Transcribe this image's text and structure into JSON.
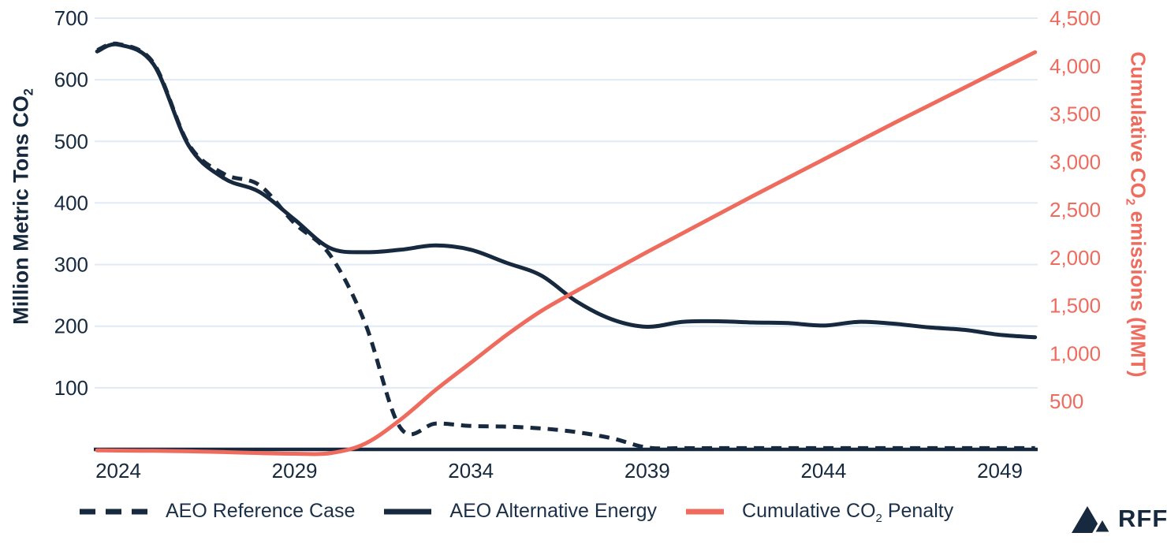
{
  "colors": {
    "navy": "#16293e",
    "coral": "#ee6b5e",
    "gridline": "#dfeaf6",
    "background": "#ffffff"
  },
  "chart_data": {
    "type": "line",
    "x": [
      2023.4,
      2024,
      2025,
      2026,
      2027,
      2028,
      2029,
      2030,
      2031,
      2032,
      2033,
      2034,
      2035,
      2036,
      2037,
      2038,
      2039,
      2040,
      2041,
      2042,
      2043,
      2044,
      2045,
      2046,
      2047,
      2048,
      2049,
      2050
    ],
    "series": [
      {
        "name": "AEO Reference Case",
        "axis": "left",
        "style": "dashed",
        "color": "#16293e",
        "values": [
          648,
          658,
          627,
          495,
          447,
          429,
          367,
          316,
          205,
          35,
          42,
          38,
          37,
          34,
          28,
          18,
          3,
          2,
          2,
          2,
          2,
          2,
          2,
          2,
          2,
          2,
          2,
          2
        ]
      },
      {
        "name": "AEO Alternative Energy",
        "axis": "left",
        "style": "solid",
        "color": "#16293e",
        "values": [
          646,
          657,
          625,
          493,
          440,
          418,
          373,
          327,
          320,
          324,
          331,
          324,
          303,
          282,
          240,
          211,
          199,
          207,
          208,
          206,
          205,
          201,
          207,
          204,
          198,
          194,
          186,
          182
        ]
      },
      {
        "name": "Cumulative CO2 Penalty",
        "axis": "right",
        "style": "solid",
        "color": "#ee6b5e",
        "values": [
          -10,
          -12,
          -15,
          -20,
          -28,
          -38,
          -45,
          -40,
          60,
          310,
          620,
          905,
          1190,
          1445,
          1655,
          1860,
          2060,
          2255,
          2450,
          2645,
          2835,
          3025,
          3215,
          3405,
          3590,
          3775,
          3960,
          4145
        ]
      }
    ],
    "x_axis": {
      "ticks": [
        {
          "value": 2024,
          "label": "2024"
        },
        {
          "value": 2029,
          "label": "2029"
        },
        {
          "value": 2034,
          "label": "2034"
        },
        {
          "value": 2039,
          "label": "2039"
        },
        {
          "value": 2044,
          "label": "2044"
        },
        {
          "value": 2049,
          "label": "2049"
        }
      ]
    },
    "left_axis": {
      "range": [
        0,
        700
      ],
      "title_main": "Million Metric Tons CO",
      "title_sub": "2",
      "ticks": [
        {
          "value": 700,
          "label": "700"
        },
        {
          "value": 600,
          "label": "600"
        },
        {
          "value": 500,
          "label": "500"
        },
        {
          "value": 400,
          "label": "400"
        },
        {
          "value": 300,
          "label": "300"
        },
        {
          "value": 200,
          "label": "200"
        },
        {
          "value": 100,
          "label": "100"
        }
      ]
    },
    "right_axis": {
      "range": [
        0,
        4500
      ],
      "title_main": "Cumulative CO",
      "title_sub": "2",
      "title_rest": " emissions (MMT)",
      "ticks": [
        {
          "value": 4500,
          "label": "4,500"
        },
        {
          "value": 4000,
          "label": "4,000"
        },
        {
          "value": 3500,
          "label": "3,500"
        },
        {
          "value": 3000,
          "label": "3,000"
        },
        {
          "value": 2500,
          "label": "2,500"
        },
        {
          "value": 2000,
          "label": "2,000"
        },
        {
          "value": 1500,
          "label": "1,500"
        },
        {
          "value": 1000,
          "label": "1,000"
        },
        {
          "value": 500,
          "label": "500"
        }
      ]
    },
    "grid": true,
    "legend_position": "bottom"
  },
  "legend": {
    "items": [
      {
        "label": "AEO Reference Case",
        "swatch": "dashed-navy"
      },
      {
        "label": "AEO Alternative Energy",
        "swatch": "solid-navy"
      },
      {
        "label_pre": "Cumulative CO",
        "label_sub": "2",
        "label_post": " Penalty",
        "swatch": "solid-coral"
      }
    ]
  },
  "logo": {
    "text": "RFF",
    "icon": "mountains-icon"
  }
}
